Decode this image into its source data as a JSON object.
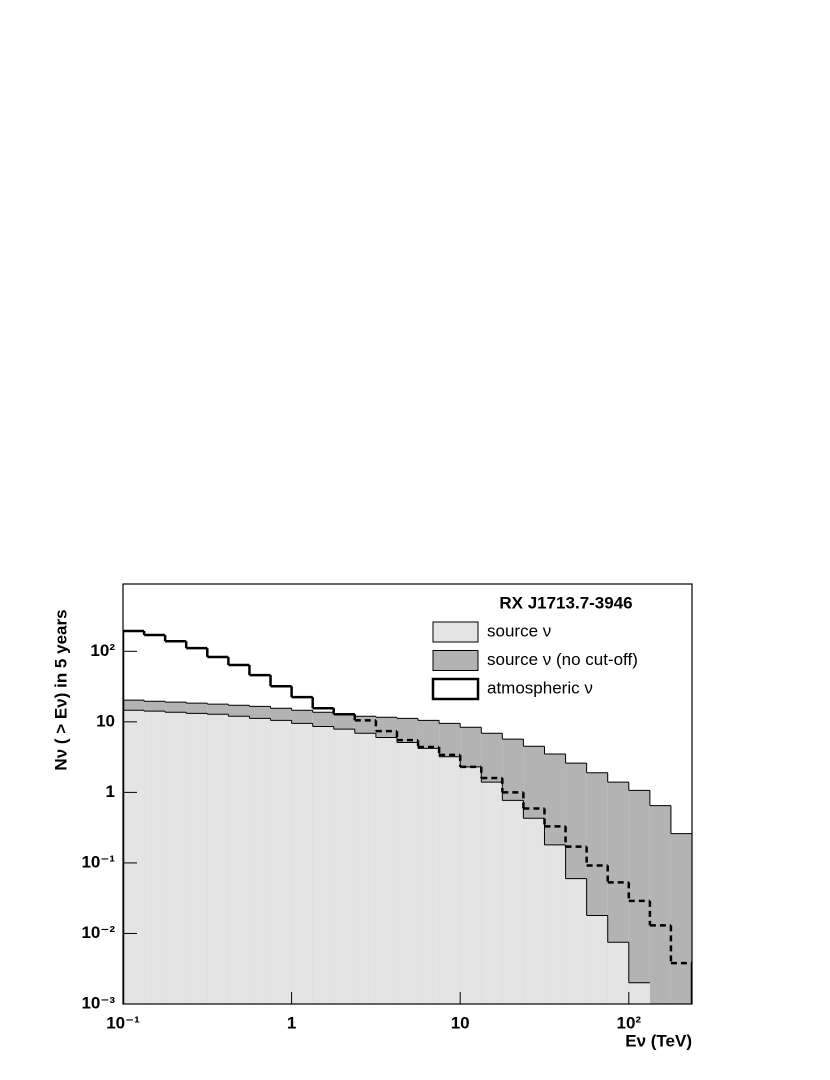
{
  "chart_data": {
    "type": "histogram",
    "legend_title": "RX J1713.7-3946",
    "x_label": "Eν (TeV)",
    "y_label": "Nν ( > Eν) in 5 years",
    "log_x": true,
    "log_y": true,
    "xlim": [
      0.1,
      237.1
    ],
    "ylim": [
      0.001,
      900
    ],
    "xticks": [
      {
        "value": 0.1,
        "label": "10⁻¹"
      },
      1,
      10,
      {
        "value": 100,
        "label": "10²"
      }
    ],
    "yticks": [
      {
        "value": 0.001,
        "label": "10⁻³"
      },
      {
        "value": 0.01,
        "label": "10⁻²"
      },
      {
        "value": 0.1,
        "label": "10⁻¹"
      },
      1,
      10,
      {
        "value": 100,
        "label": "10²"
      }
    ],
    "bins": [
      0.1,
      0.1334,
      0.1778,
      0.2371,
      0.3162,
      0.4217,
      0.5623,
      0.7499,
      1,
      1.334,
      1.778,
      2.371,
      3.162,
      4.217,
      5.623,
      7.499,
      10,
      13.34,
      17.78,
      23.71,
      31.62,
      42.17,
      56.23,
      74.99,
      100,
      133.4,
      177.8,
      237.1
    ],
    "series": [
      {
        "name": "source ν (no cut-off)",
        "color": "#b3b3b3",
        "style": "fill",
        "values": [
          20.3,
          19.6,
          19,
          18.4,
          17.8,
          17.2,
          16.6,
          15.6,
          14.6,
          13.7,
          12.8,
          12,
          11.6,
          11.2,
          10.5,
          9.5,
          8.4,
          6.9,
          5.7,
          4.5,
          3.5,
          2.6,
          1.9,
          1.4,
          1.07,
          0.65,
          0.26
        ]
      },
      {
        "name": "source ν",
        "color": "#e4e4e4",
        "style": "fill",
        "values": [
          14.6,
          14.2,
          13.7,
          13.2,
          12.8,
          12,
          11.2,
          10.5,
          9.5,
          8.6,
          7.9,
          6.9,
          6,
          5.1,
          4.2,
          3.2,
          2.3,
          1.4,
          0.77,
          0.43,
          0.18,
          0.06,
          0.018,
          0.0075,
          0.002,
          null,
          null
        ]
      },
      {
        "name": "atmospheric ν",
        "color": "#000000",
        "style": "line",
        "values": [
          194,
          170,
          139,
          111,
          83,
          64,
          46,
          32,
          22.4,
          15.6,
          12.8,
          10.5,
          7.4,
          5.5,
          4.4,
          3.4,
          2.3,
          1.6,
          1.0,
          0.59,
          0.33,
          0.17,
          0.092,
          0.053,
          0.029,
          0.013,
          0.0038
        ]
      }
    ],
    "legend_order": [
      1,
      0,
      2
    ]
  }
}
